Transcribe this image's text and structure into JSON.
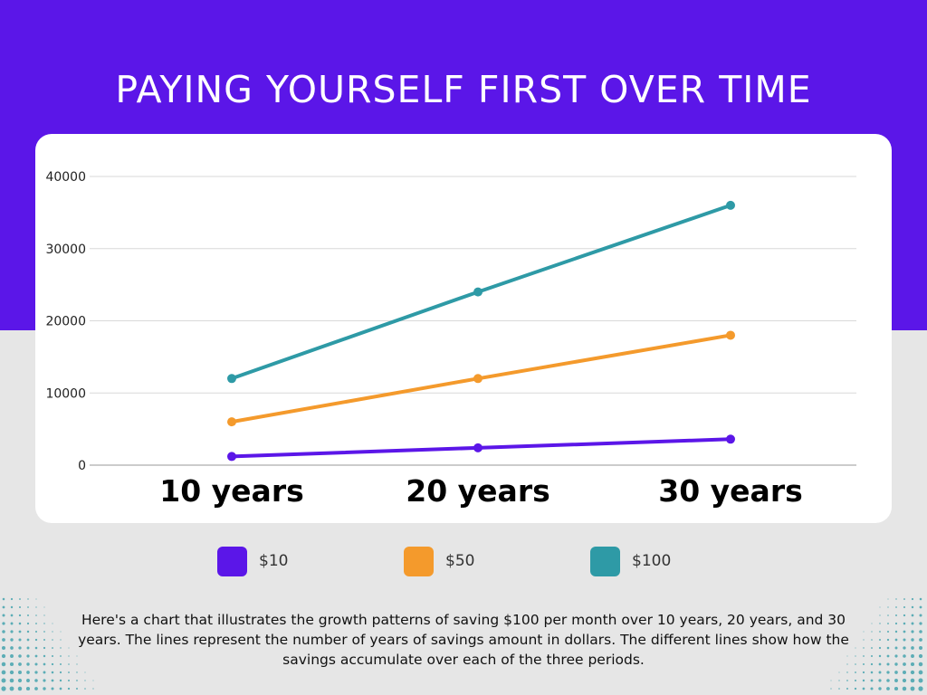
{
  "title": "PAYING YOURSELF FIRST OVER TIME",
  "colors": {
    "header_bg": "#5b16e8",
    "page_bg": "#e6e6e6",
    "card_bg": "#ffffff",
    "series_10": "#5b16e8",
    "series_50": "#f49a2c",
    "series_100": "#2e9aa6",
    "gridline": "#d9d9d9"
  },
  "chart_data": {
    "type": "line",
    "categories": [
      "10 years",
      "20 years",
      "30 years"
    ],
    "series": [
      {
        "name": "$10",
        "values": [
          1200,
          2400,
          3600
        ],
        "color": "#5b16e8"
      },
      {
        "name": "$50",
        "values": [
          6000,
          12000,
          18000
        ],
        "color": "#f49a2c"
      },
      {
        "name": "$100",
        "values": [
          12000,
          24000,
          36000
        ],
        "color": "#2e9aa6"
      }
    ],
    "y_ticks": [
      "0",
      "10000",
      "20000",
      "30000",
      "40000"
    ],
    "ylim": [
      0,
      40000
    ],
    "grid": true,
    "legend_position": "bottom"
  },
  "legend": {
    "items": [
      {
        "label": "$10",
        "color": "#5b16e8"
      },
      {
        "label": "$50",
        "color": "#f49a2c"
      },
      {
        "label": "$100",
        "color": "#2e9aa6"
      }
    ]
  },
  "description": "Here's a chart that illustrates the growth patterns of saving $100 per month over 10 years, 20 years, and 30 years. The lines represent the number of years of savings amount in dollars. The different lines show how the savings accumulate over each of the three periods."
}
